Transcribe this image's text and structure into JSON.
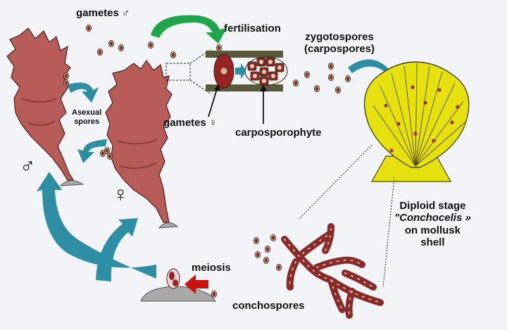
{
  "labels": {
    "gametes_male": "gametes ♂",
    "fertilisation": "fertilisation",
    "zygotospores_1": "zygotospores",
    "zygotospores_2": "(carpospores)",
    "asexual_1": "Asexual",
    "asexual_2": "spores",
    "gametes_female": "gametes ♀",
    "carposporophyte": "carposporophyte",
    "male_symbol": "♂",
    "female_symbol": "♀",
    "diploid_1": "Diploid stage",
    "diploid_2": "\"Conchocelis »",
    "diploid_3": "on mollusk",
    "diploid_4": "shell",
    "meiosis": "meiosis",
    "conchospores": "conchospores"
  },
  "colors": {
    "background": "#f3f4f8",
    "thallus": "#b85c5a",
    "thallus_outline": "#4a1f1f",
    "shell": "#e6e10e",
    "shell_outline": "#4a4a00",
    "spore": "#8a2b2b",
    "spore_ring": "#d9b38c",
    "arrow_teal": "#2e8ea3",
    "arrow_green": "#1fa64a",
    "arrow_red": "#cc1111",
    "rock": "#a8a8a8"
  }
}
